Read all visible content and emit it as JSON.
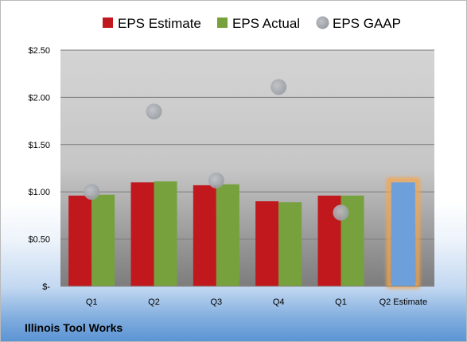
{
  "chart_data": {
    "type": "bar",
    "company": "Illinois Tool Works",
    "categories": [
      "Q1",
      "Q2",
      "Q3",
      "Q4",
      "Q1",
      "Q2 Estimate"
    ],
    "series": [
      {
        "name": "EPS Estimate",
        "color": "#c0181c",
        "values": [
          0.96,
          1.1,
          1.07,
          0.9,
          0.96,
          null
        ]
      },
      {
        "name": "EPS Actual",
        "color": "#76a13c",
        "values": [
          0.97,
          1.11,
          1.08,
          0.89,
          0.96,
          null
        ]
      },
      {
        "name": "EPS GAAP",
        "color": "#a9aeb4",
        "type": "scatter",
        "values": [
          1.0,
          1.85,
          1.12,
          2.11,
          0.78,
          null
        ]
      },
      {
        "name": "",
        "color": "#6d9fda",
        "highlight": "#f6a54a",
        "values": [
          null,
          null,
          null,
          null,
          null,
          1.1
        ]
      }
    ],
    "yticks": [
      {
        "value": 0,
        "label": "$-"
      },
      {
        "value": 0.5,
        "label": "$0.50"
      },
      {
        "value": 1.0,
        "label": "$1.00"
      },
      {
        "value": 1.5,
        "label": "$1.50"
      },
      {
        "value": 2.0,
        "label": "$2.00"
      },
      {
        "value": 2.5,
        "label": "$2.50"
      }
    ],
    "ylim": [
      0,
      2.5
    ],
    "grid": true,
    "legend": "top"
  }
}
